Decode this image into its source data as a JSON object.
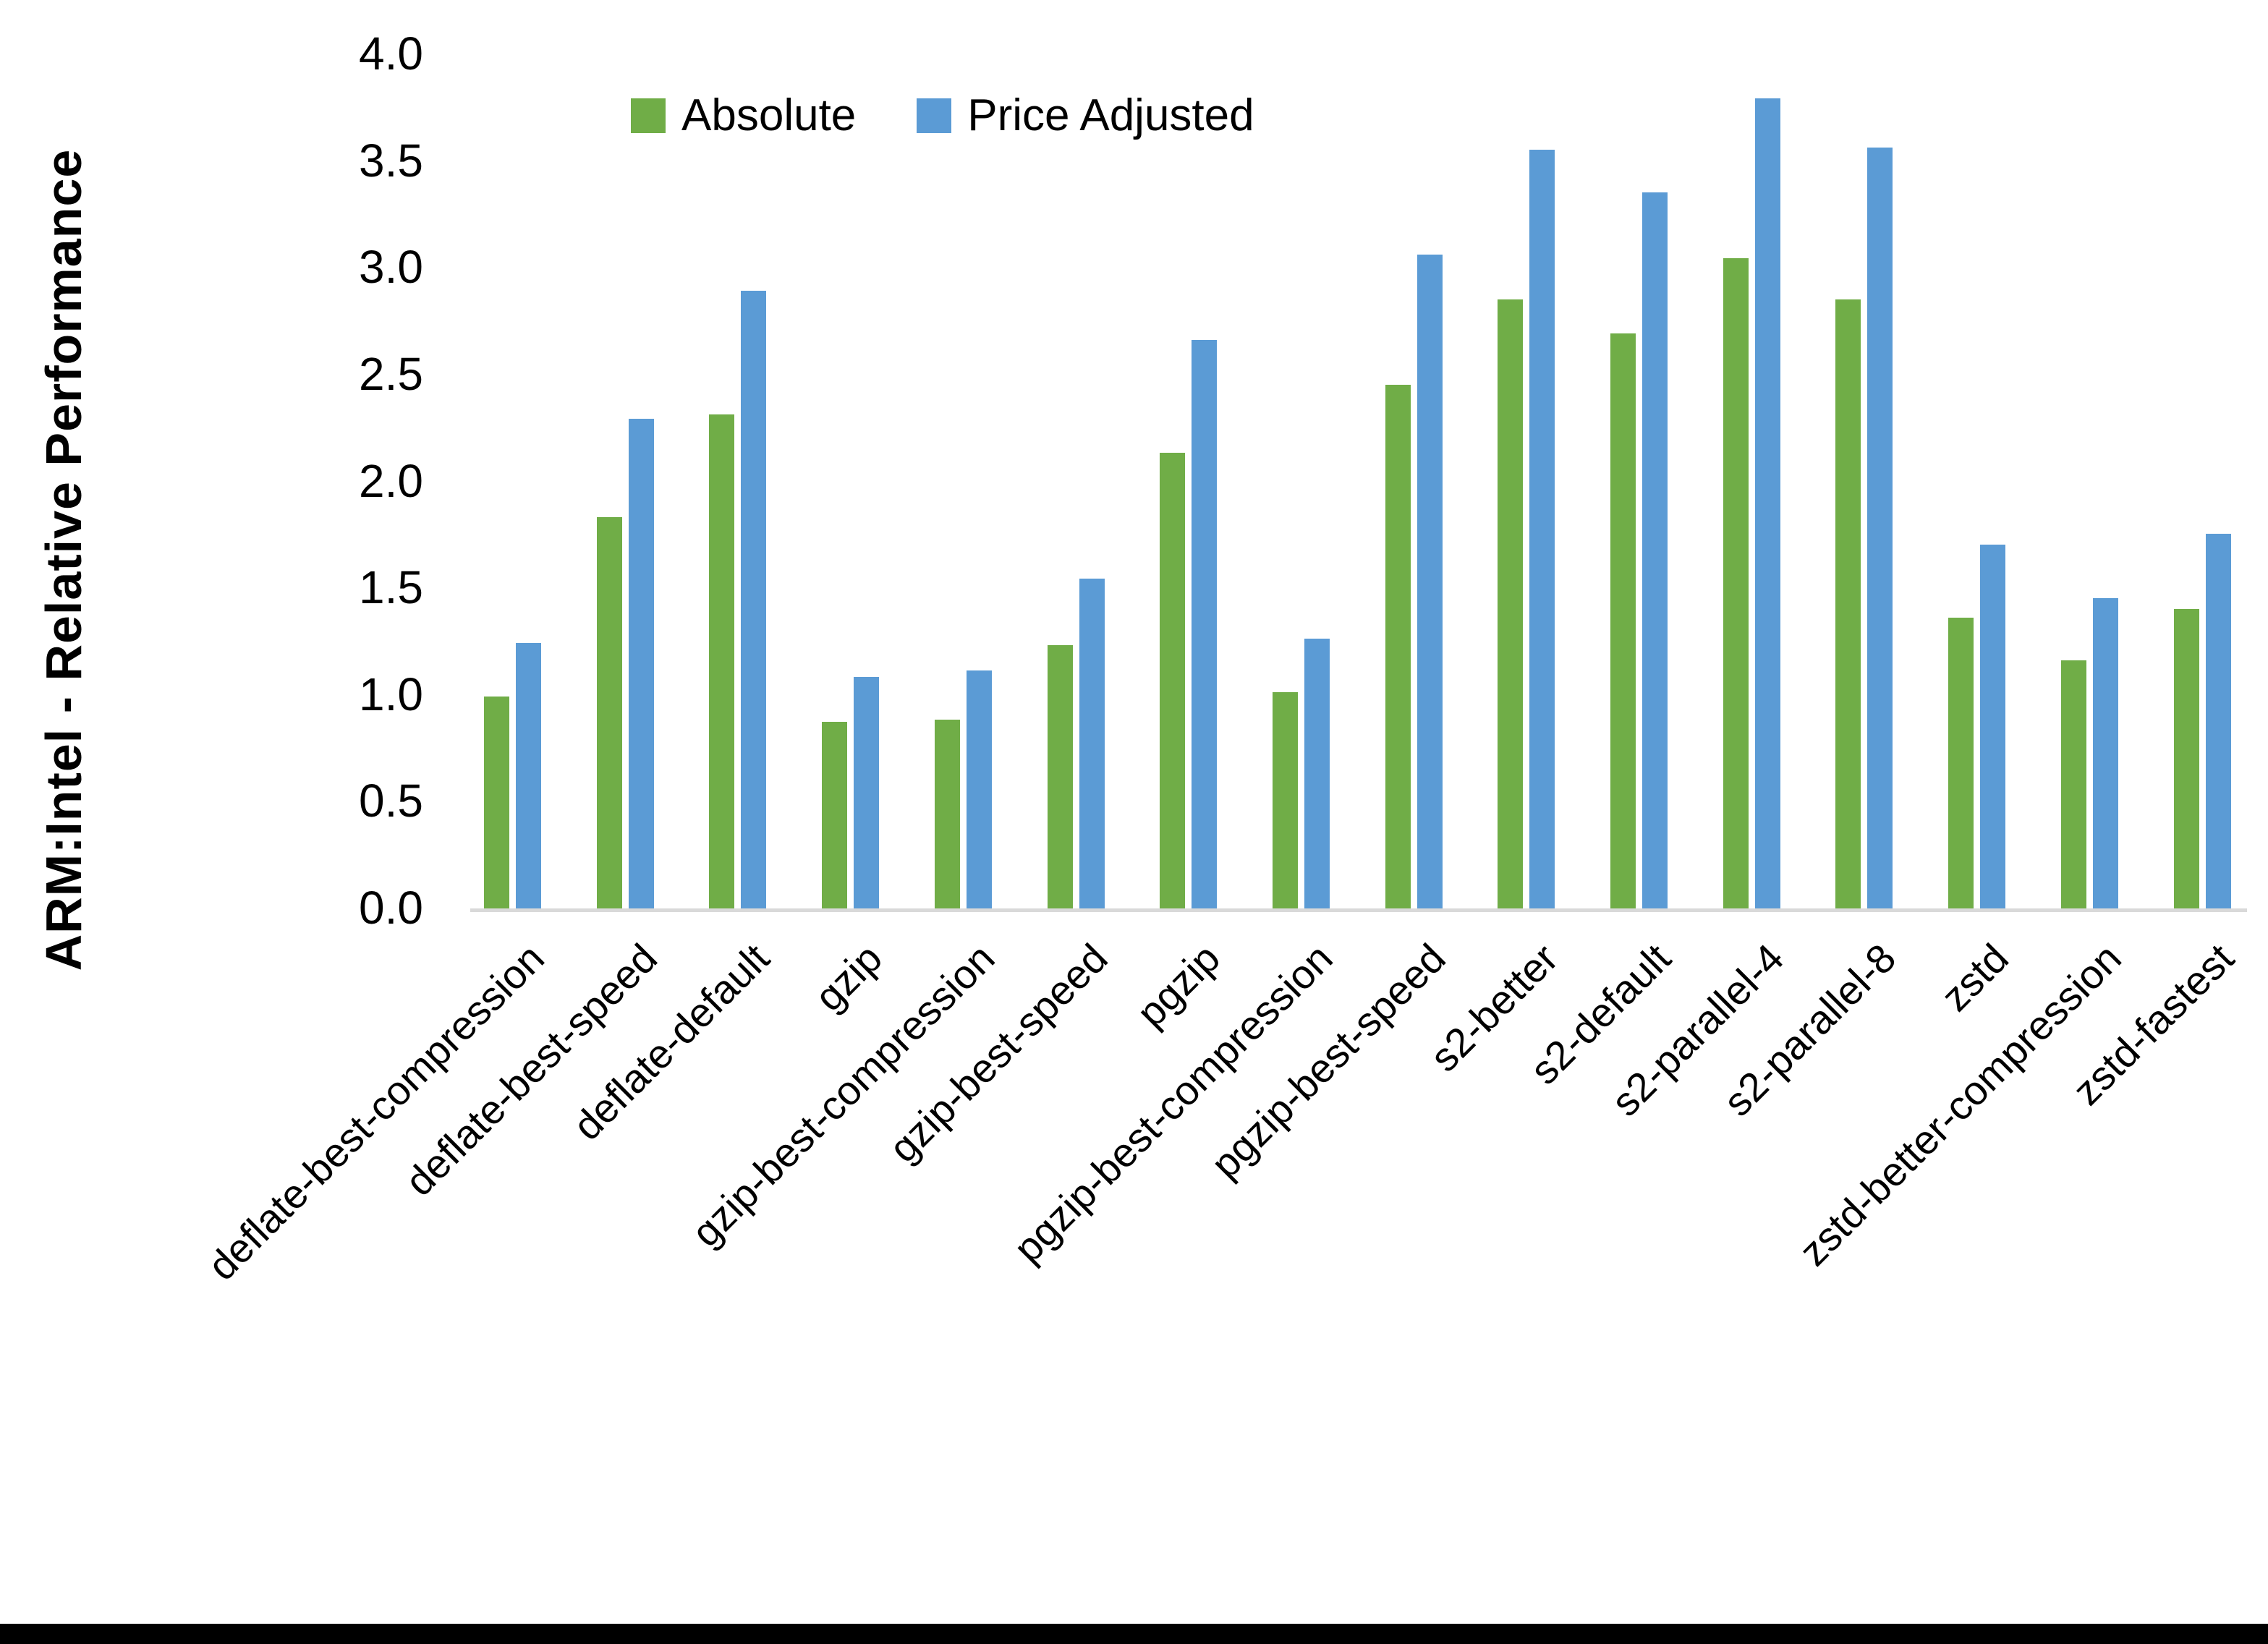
{
  "page": {
    "background": "#FFFFFF",
    "bottom_bar_color": "#000000",
    "axis_line_color": "#D9D9D9"
  },
  "legend": {
    "position": "top-center",
    "items": [
      {
        "label": "Absolute",
        "color": "#70AD47"
      },
      {
        "label": "Price Adjusted",
        "color": "#5B9BD5"
      }
    ]
  },
  "chart_data": {
    "type": "bar",
    "title": "",
    "xlabel": "",
    "ylabel": "ARM:Intel - Relative Performance",
    "ylim": [
      0.0,
      4.0
    ],
    "ytick_step": 0.5,
    "yticks": [
      "0.0",
      "0.5",
      "1.0",
      "1.5",
      "2.0",
      "2.5",
      "3.0",
      "3.5",
      "4.0"
    ],
    "grid": false,
    "legend_position": "top-center",
    "categories": [
      "deflate-best-compression",
      "deflate-best-speed",
      "deflate-default",
      "gzip",
      "gzip-best-compression",
      "gzip-best-speed",
      "pgzip",
      "pgzip-best-compression",
      "pgzip-best-speed",
      "s2-better",
      "s2-default",
      "s2-parallel-4",
      "s2-parallel-8",
      "zstd",
      "zstd-better-compression",
      "zstd-fastest"
    ],
    "series": [
      {
        "name": "Absolute",
        "color": "#70AD47",
        "values": [
          1.0,
          1.84,
          2.32,
          0.88,
          0.89,
          1.24,
          2.14,
          1.02,
          2.46,
          2.86,
          2.7,
          3.05,
          2.86,
          1.37,
          1.17,
          1.41
        ]
      },
      {
        "name": "Price Adjusted",
        "color": "#5B9BD5",
        "values": [
          1.25,
          2.3,
          2.9,
          1.09,
          1.12,
          1.55,
          2.67,
          1.27,
          3.07,
          3.56,
          3.36,
          3.8,
          3.57,
          1.71,
          1.46,
          1.76
        ]
      }
    ]
  }
}
